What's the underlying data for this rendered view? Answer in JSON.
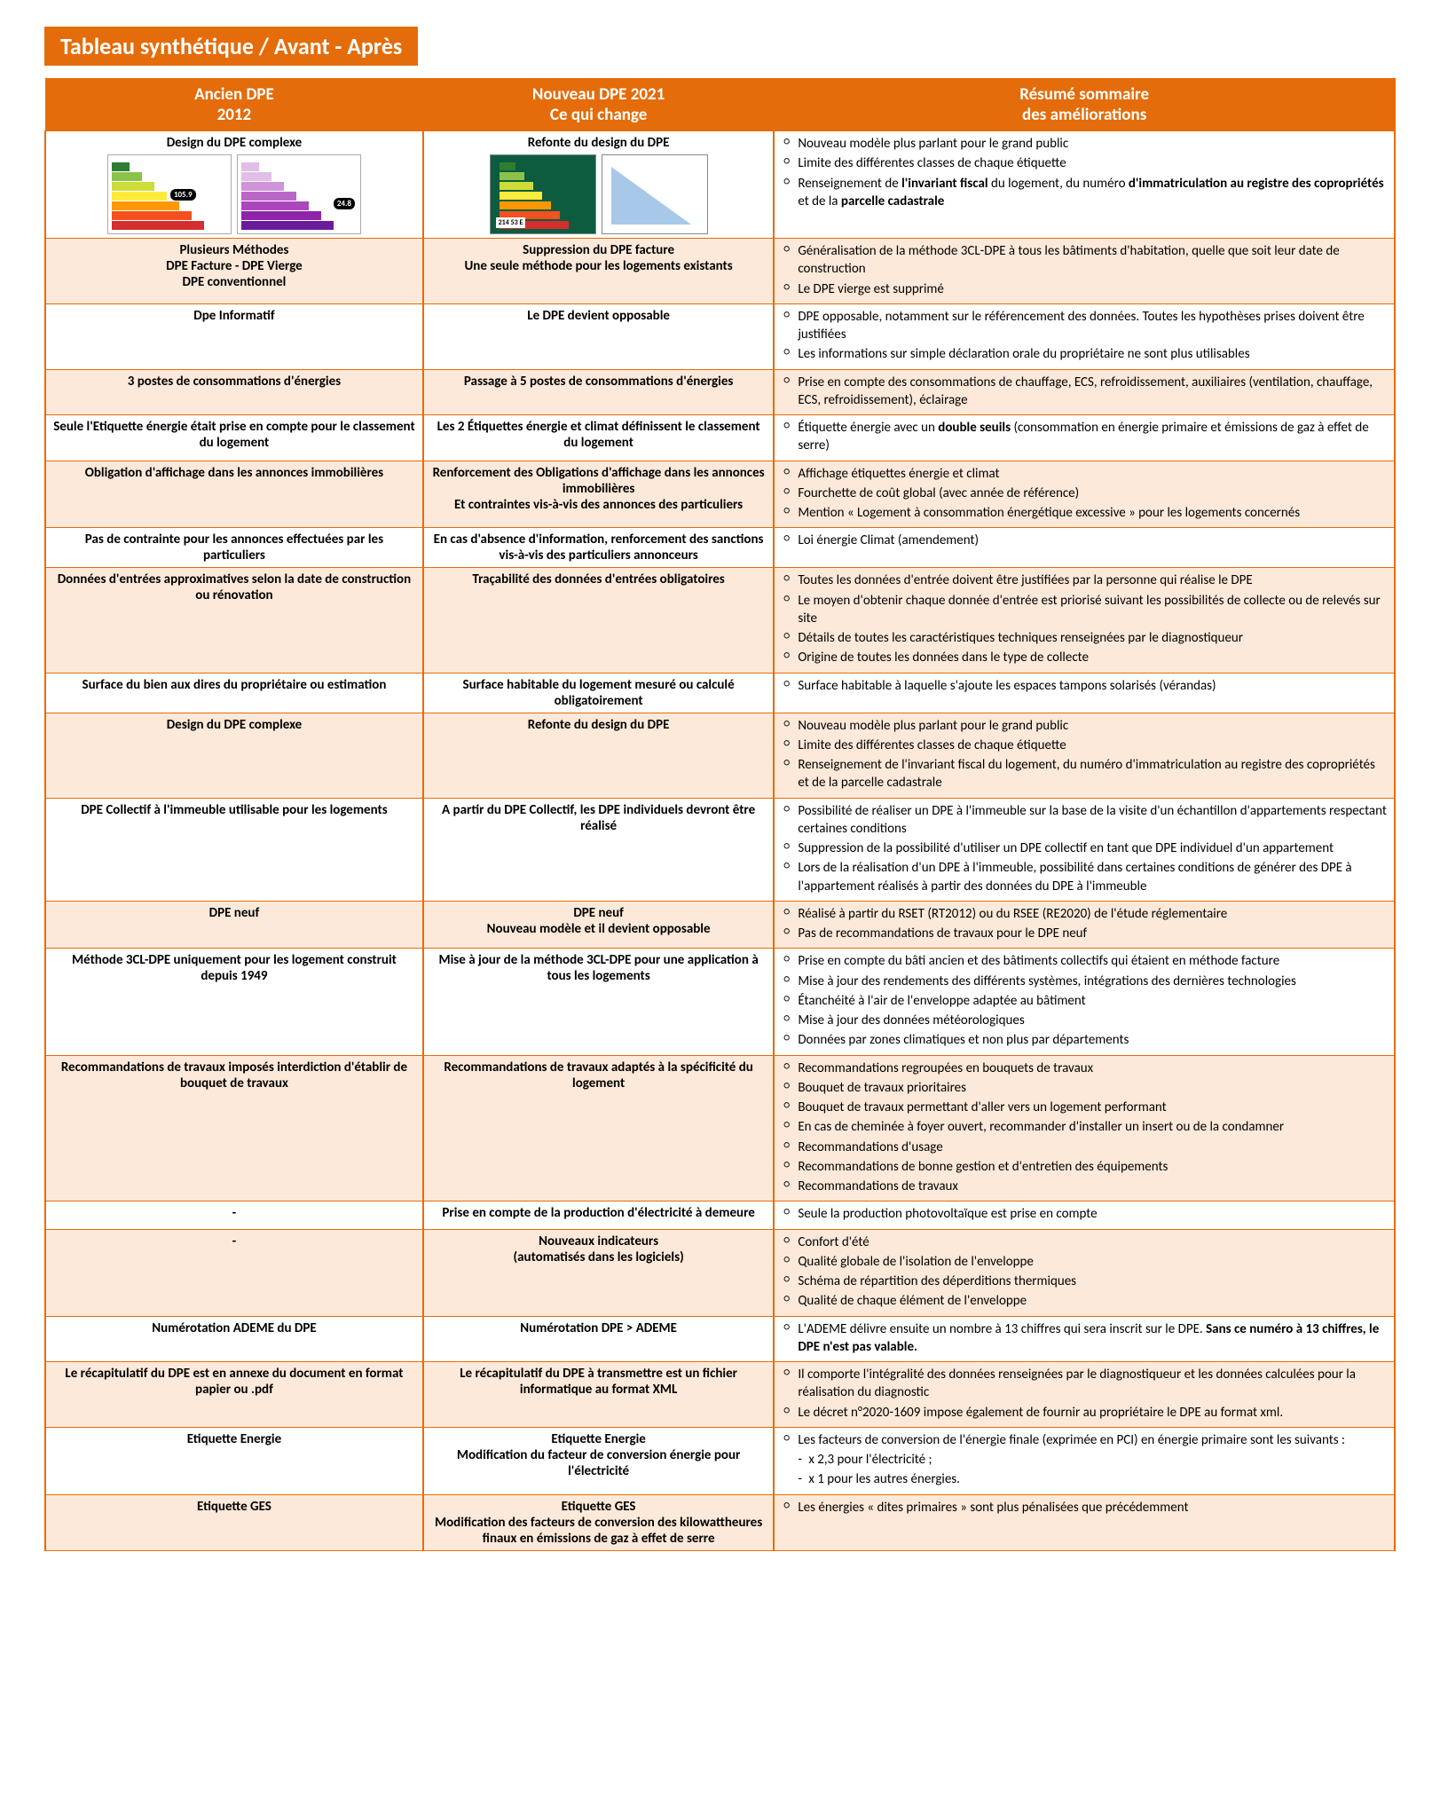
{
  "title": "Tableau synthétique / Avant - Après",
  "headers": {
    "ancien": "Ancien DPE<br>2012",
    "nouveau": "Nouveau DPE 2021<br>Ce qui change",
    "resume": "Résumé sommaire<br>des améliorations"
  },
  "colors": {
    "accent": "#e46c0a",
    "altBg": "#fde9d9"
  },
  "rows": [
    {
      "alt": false,
      "ancien": "Design du DPE complexe",
      "nouveau": "Refonte du design du DPE",
      "thumbs": "old-new",
      "resume": [
        "Nouveau modèle plus parlant pour le grand public",
        "Limite des différentes classes de chaque étiquette",
        "Renseignement de <b>l'invariant fiscal</b> du logement, du numéro <b>d'immatriculation au registre des copropriétés</b> et de la <b>parcelle cadastrale</b>"
      ]
    },
    {
      "alt": true,
      "ancien": "Plusieurs Méthodes<br>DPE Facture - DPE Vierge<br>DPE conventionnel",
      "nouveau": "Suppression du DPE facture<br>Une seule méthode pour les logements existants",
      "resume": [
        "Généralisation de la méthode 3CL-DPE à tous les bâtiments d'habitation, quelle que soit leur date de construction",
        "Le DPE vierge est supprimé"
      ]
    },
    {
      "alt": false,
      "ancien": "Dpe Informatif",
      "nouveau": "Le DPE devient opposable",
      "resume": [
        "DPE opposable, notamment sur le référencement des données. Toutes les hypothèses prises doivent être justifiées",
        "Les informations sur simple déclaration orale du propriétaire ne sont plus utilisables"
      ]
    },
    {
      "alt": true,
      "ancien": "3 postes de consommations d'énergies",
      "nouveau": "Passage à 5 postes de consommations d'énergies",
      "resume": [
        "Prise en compte des consommations de chauffage, ECS, refroidissement, auxiliaires (ventilation, chauffage, ECS, refroidissement), éclairage"
      ]
    },
    {
      "alt": false,
      "ancien": "Seule l'Etiquette énergie était prise en compte pour le classement du logement",
      "nouveau": "Les 2 Étiquettes énergie et climat définissent le classement du logement",
      "resume": [
        "Étiquette énergie avec un <b>double seuils</b> (consommation en énergie primaire et émissions de gaz à effet de serre)"
      ]
    },
    {
      "alt": true,
      "ancien": "Obligation d'affichage dans les annonces immobilières",
      "nouveau": "Renforcement des Obligations d'affichage dans les annonces immobilières<br>Et contraintes vis-à-vis des annonces des particuliers",
      "resume": [
        "Affichage étiquettes énergie et climat",
        "Fourchette de coût global (avec année de référence)",
        "Mention « Logement à consommation énergétique excessive » pour les logements concernés"
      ]
    },
    {
      "alt": false,
      "ancien": "Pas de contrainte  pour  les annonces effectuées par les particuliers",
      "nouveau": "En cas d'absence d'information, renforcement des sanctions<br>vis-à-vis des particuliers annonceurs",
      "resume": [
        "Loi énergie Climat (amendement)"
      ]
    },
    {
      "alt": true,
      "ancien": "Données d'entrées approximatives selon la date de construction ou rénovation",
      "nouveau": "Traçabilité des données d'entrées obligatoires",
      "resume": [
        "Toutes les données d'entrée doivent être justifiées par la personne qui réalise le DPE",
        "Le moyen d'obtenir chaque donnée d'entrée est priorisé suivant les possibilités de collecte ou de relevés sur site",
        "Détails de toutes les caractéristiques techniques renseignées par le diagnostiqueur",
        "Origine de toutes les données dans le type de collecte"
      ]
    },
    {
      "alt": false,
      "ancien": "Surface du bien aux dires du propriétaire ou estimation",
      "nouveau": "Surface habitable du logement mesuré ou calculé obligatoirement",
      "resume": [
        "Surface habitable à laquelle s'ajoute les espaces tampons solarisés (vérandas)"
      ]
    },
    {
      "alt": true,
      "ancien": "Design du DPE complexe",
      "nouveau": "Refonte du design du DPE",
      "resume": [
        "Nouveau modèle plus parlant pour le grand public",
        "Limite des différentes classes de chaque étiquette",
        "Renseignement de l'invariant fiscal du logement, du numéro d'immatriculation au registre des copropriétés et de la parcelle cadastrale"
      ]
    },
    {
      "alt": false,
      "ancien": "DPE Collectif à l'immeuble utilisable pour les logements",
      "nouveau": "A partir du DPE Collectif, les DPE individuels devront être réalisé",
      "resume": [
        "Possibilité de réaliser un DPE à l'immeuble sur la base de la visite d'un échantillon d'appartements respectant certaines conditions",
        "Suppression de la possibilité d'utiliser un DPE collectif en tant que DPE individuel d'un appartement",
        "Lors de la réalisation d'un DPE à l'immeuble, possibilité dans certaines conditions de générer des DPE à l'appartement réalisés à partir des données du DPE à l'immeuble"
      ]
    },
    {
      "alt": true,
      "ancien": "DPE neuf",
      "nouveau": "DPE neuf<br>Nouveau modèle et il devient opposable",
      "resume": [
        "Réalisé à partir du RSET (RT2012) ou du RSEE (RE2020) de l'étude réglementaire",
        "Pas de recommandations de travaux pour le DPE neuf"
      ]
    },
    {
      "alt": false,
      "ancien": "Méthode 3CL-DPE uniquement pour les logement construit depuis 1949",
      "nouveau": "Mise à jour de la méthode 3CL-DPE pour une application à tous les logements",
      "resume": [
        "Prise en compte du bâti ancien et des bâtiments collectifs qui étaient en méthode facture",
        "Mise à jour des rendements des différents systèmes, intégrations des dernières technologies",
        "Étanchéité à l'air de l'enveloppe adaptée au bâtiment",
        "Mise à jour des données météorologiques",
        "Données par zones climatiques et non plus par départements"
      ]
    },
    {
      "alt": true,
      "ancien": "Recommandations de travaux imposés interdiction d'établir de bouquet de travaux",
      "nouveau": "Recommandations de travaux adaptés à la spécificité du logement",
      "resume": [
        "Recommandations regroupées en bouquets de travaux",
        "Bouquet de travaux prioritaires",
        "Bouquet de travaux permettant d'aller vers un logement performant",
        "En cas de cheminée à foyer ouvert, recommander d'installer un insert ou de la condamner",
        "Recommandations d'usage",
        "Recommandations de bonne gestion et d'entretien des équipements",
        "Recommandations de travaux"
      ]
    },
    {
      "alt": false,
      "ancien": "-",
      "nouveau": "Prise en compte de la production d'électricité à demeure",
      "resume": [
        "Seule la production photovoltaïque est prise en compte"
      ]
    },
    {
      "alt": true,
      "ancien": "-",
      "nouveau": "Nouveaux indicateurs<br>(automatisés dans les logiciels)",
      "resume": [
        "Confort d'été",
        "Qualité globale de l'isolation de l'enveloppe",
        "Schéma de répartition des déperditions thermiques",
        "Qualité de chaque élément de l'enveloppe"
      ]
    },
    {
      "alt": false,
      "ancien": "Numérotation ADEME du DPE",
      "nouveau": "Numérotation DPE  > ADEME",
      "resume": [
        "L'ADEME délivre ensuite un nombre à 13 chiffres qui sera inscrit sur le DPE. <b>Sans ce numéro à 13 chiffres, le DPE n'est pas valable.</b>"
      ]
    },
    {
      "alt": true,
      "ancien": "Le récapitulatif du DPE est en annexe du document en format papier ou .pdf",
      "nouveau": "Le récapitulatif du DPE à transmettre est un fichier informatique au format XML",
      "resume": [
        "Il comporte l'intégralité des données renseignées par le diagnostiqueur et les données calculées pour la réalisation du diagnostic",
        "Le décret n°2020-1609 impose également de fournir au propriétaire le DPE au format xml."
      ]
    },
    {
      "alt": false,
      "ancien": "Etiquette Energie",
      "nouveau": "Etiquette Energie<br>Modification du facteur de conversion énergie pour l'électricité",
      "resume": [
        "Les facteurs de conversion de l'énergie finale (exprimée en PCI) en énergie primaire sont les suivants :"
      ],
      "sub": [
        "x 2,3 pour l'électricité ;",
        "x 1 pour les autres énergies."
      ]
    },
    {
      "alt": true,
      "ancien": "Etiquette GES",
      "nouveau": "Etiquette GES<br>Modification des facteurs de conversion des kilowattheures finaux en émissions de gaz à effet de serre",
      "resume": [
        "Les énergies « dites primaires »  sont plus pénalisées que précédemment"
      ]
    }
  ]
}
